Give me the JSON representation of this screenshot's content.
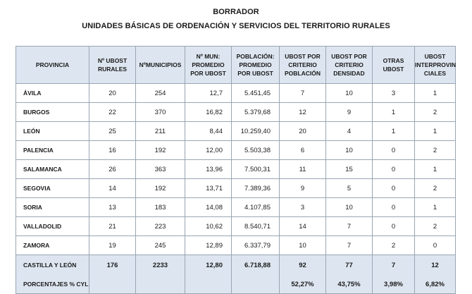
{
  "title_line1": "BORRADOR",
  "title_line2": "UNIDADES BÁSICAS DE ORDENACIÓN Y SERVICIOS DEL TERRITORIO RURALES",
  "headers": [
    "PROVINCIA",
    "Nº UBOST RURALES",
    "NºMUNICIPIOS",
    "Nº MUN: PROMEDIO POR UBOST",
    "POBLACIÓN: PROMEDIO POR UBOST",
    "UBOST POR CRITERIO POBLACIÓN",
    "UBOST POR CRITERIO DENSIDAD",
    "OTRAS UBOST",
    "UBOST INTERPROVIN CIALES"
  ],
  "rows": [
    [
      "ÁVILA",
      "20",
      "254",
      "12,7",
      "5.451,45",
      "7",
      "10",
      "3",
      "1"
    ],
    [
      "BURGOS",
      "22",
      "370",
      "16,82",
      "5.379,68",
      "12",
      "9",
      "1",
      "2"
    ],
    [
      "LEÓN",
      "25",
      "211",
      "8,44",
      "10.259,40",
      "20",
      "4",
      "1",
      "1"
    ],
    [
      "PALENCIA",
      "16",
      "192",
      "12,00",
      "5.503,38",
      "6",
      "10",
      "0",
      "2"
    ],
    [
      "SALAMANCA",
      "26",
      "363",
      "13,96",
      "7.500,31",
      "11",
      "15",
      "0",
      "1"
    ],
    [
      "SEGOVIA",
      "14",
      "192",
      "13,71",
      "7.389,36",
      "9",
      "5",
      "0",
      "2"
    ],
    [
      "SORIA",
      "13",
      "183",
      "14,08",
      "4.107,85",
      "3",
      "10",
      "0",
      "1"
    ],
    [
      "VALLADOLID",
      "21",
      "223",
      "10,62",
      "8.540,71",
      "14",
      "7",
      "0",
      "2"
    ],
    [
      "ZAMORA",
      "19",
      "245",
      "12,89",
      "6.337,79",
      "10",
      "7",
      "2",
      "0"
    ]
  ],
  "total": [
    "CASTILLA Y LEÓN",
    "176",
    "2233",
    "12,80",
    "6.718,88",
    "92",
    "77",
    "7",
    "12"
  ],
  "percent": [
    "PORCENTAJES % CYL",
    "",
    "",
    "",
    "",
    "52,27%",
    "43,75%",
    "3,98%",
    "6,82%"
  ]
}
